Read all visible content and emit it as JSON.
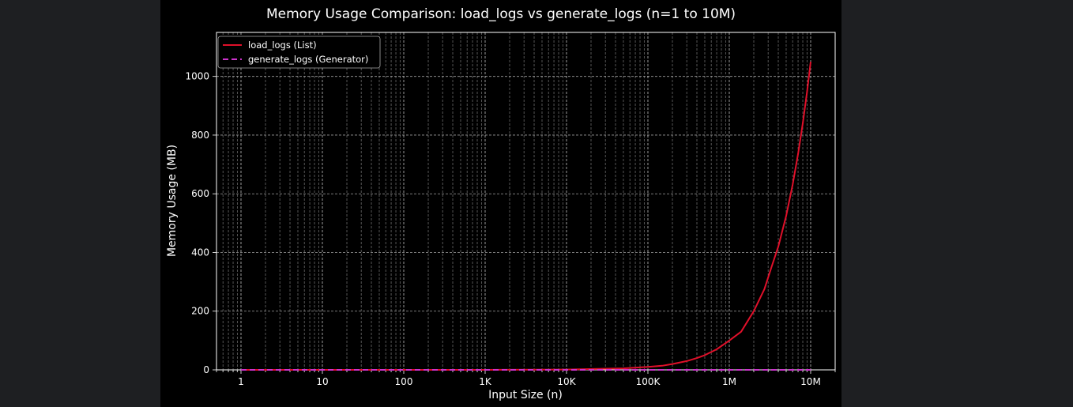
{
  "chart_data": {
    "type": "line",
    "title": "Memory Usage Comparison: load_logs vs generate_logs (n=1 to 10M)",
    "xlabel": "Input Size (n)",
    "ylabel": "Memory Usage (MB)",
    "x_scale": "log",
    "xlim": [
      0.5,
      20000000
    ],
    "ylim": [
      0,
      1150
    ],
    "x_ticks": [
      {
        "value": 1,
        "label": "1"
      },
      {
        "value": 10,
        "label": "10"
      },
      {
        "value": 100,
        "label": "100"
      },
      {
        "value": 1000,
        "label": "1K"
      },
      {
        "value": 10000,
        "label": "10K"
      },
      {
        "value": 100000,
        "label": "100K"
      },
      {
        "value": 1000000,
        "label": "1M"
      },
      {
        "value": 10000000,
        "label": "10M"
      }
    ],
    "y_ticks": [
      {
        "value": 0,
        "label": "0"
      },
      {
        "value": 200,
        "label": "200"
      },
      {
        "value": 400,
        "label": "400"
      },
      {
        "value": 600,
        "label": "600"
      },
      {
        "value": 800,
        "label": "800"
      },
      {
        "value": 1000,
        "label": "1000"
      }
    ],
    "grid": true,
    "legend_position": "top-left",
    "series": [
      {
        "name": "load_logs (List)",
        "color": "#e0102a",
        "line_style": "solid",
        "x": [
          1,
          10,
          100,
          1000,
          10000,
          50000,
          100000,
          150000,
          200000,
          300000,
          400000,
          500000,
          700000,
          1000000,
          1400000,
          2000000,
          2700000,
          3300000,
          4000000,
          5000000,
          6000000,
          7000000,
          8000000,
          9000000,
          10000000
        ],
        "y": [
          0,
          0,
          0,
          0,
          1,
          5,
          10,
          14,
          20,
          30,
          40,
          50,
          70,
          100,
          130,
          200,
          275,
          350,
          420,
          525,
          630,
          735,
          840,
          945,
          1050
        ]
      },
      {
        "name": "generate_logs (Generator)",
        "color": "#cc33cc",
        "line_style": "dashed",
        "x": [
          1,
          10,
          100,
          1000,
          10000,
          100000,
          1000000,
          10000000
        ],
        "y": [
          0,
          0,
          0,
          0,
          0,
          0,
          0,
          0
        ]
      }
    ]
  }
}
